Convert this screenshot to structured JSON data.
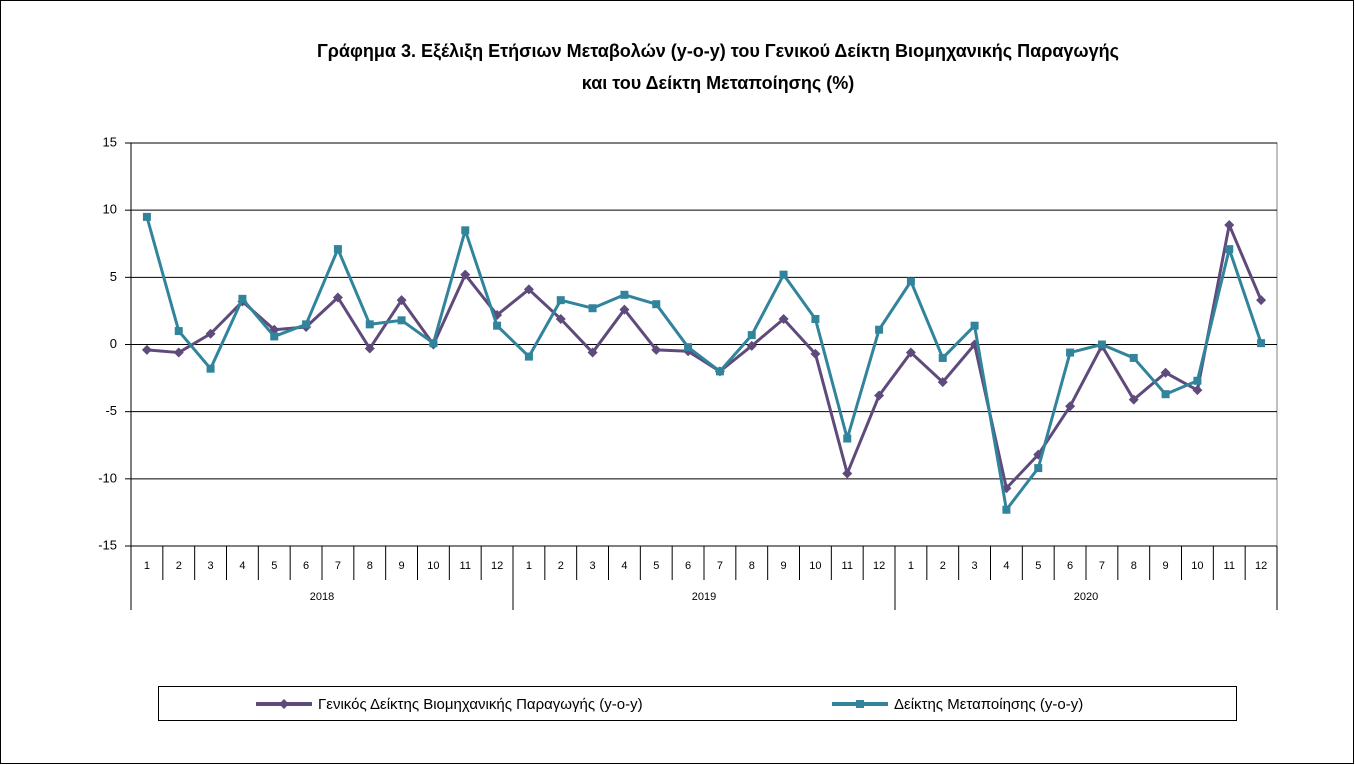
{
  "chart_data": {
    "type": "line",
    "title": [
      "Γράφημα 3. Εξέλιξη Ετήσιων Μεταβολών (y-o-y) του Γενικού Δείκτη Βιομηχανικής Παραγωγής",
      "και του Δείκτη Μεταποίησης (%)"
    ],
    "categories": [
      "1",
      "2",
      "3",
      "4",
      "5",
      "6",
      "7",
      "8",
      "9",
      "10",
      "11",
      "12",
      "1",
      "2",
      "3",
      "4",
      "5",
      "6",
      "7",
      "8",
      "9",
      "10",
      "11",
      "12",
      "1",
      "2",
      "3",
      "4",
      "5",
      "6",
      "7",
      "8",
      "9",
      "10",
      "11",
      "12"
    ],
    "category_groups": [
      "2018",
      "2019",
      "2020"
    ],
    "series": [
      {
        "name": "Γενικός Δείκτης Βιομηχανικής Παραγωγής (y-o-y)",
        "color": "#5f4a7c",
        "marker": "diamond",
        "values": [
          -0.4,
          -0.6,
          0.8,
          3.2,
          1.1,
          1.3,
          3.5,
          -0.3,
          3.3,
          0.0,
          5.2,
          2.2,
          4.1,
          1.9,
          -0.6,
          2.6,
          -0.4,
          -0.5,
          -2.0,
          -0.1,
          1.9,
          -0.7,
          -9.6,
          -3.8,
          -0.6,
          -2.8,
          0.0,
          -10.7,
          -8.2,
          -4.6,
          -0.1,
          -4.1,
          -2.1,
          -3.4,
          8.9,
          3.3
        ]
      },
      {
        "name": "Δείκτης Μεταποίησης (y-o-y)",
        "color": "#31849b",
        "marker": "square",
        "values": [
          9.5,
          1.0,
          -1.8,
          3.4,
          0.6,
          1.5,
          7.1,
          1.5,
          1.8,
          0.1,
          8.5,
          1.4,
          -0.9,
          3.3,
          2.7,
          3.7,
          3.0,
          -0.2,
          -2.0,
          0.7,
          5.2,
          1.9,
          -7.0,
          1.1,
          4.7,
          -1.0,
          1.4,
          -12.3,
          -9.2,
          -0.6,
          0.0,
          -1.0,
          -3.7,
          -2.7,
          7.1,
          0.1
        ]
      }
    ],
    "ylim": [
      -15,
      15
    ],
    "yticks": [
      -15,
      -10,
      -5,
      0,
      5,
      10,
      15
    ],
    "grid": true,
    "legend": "bottom"
  }
}
